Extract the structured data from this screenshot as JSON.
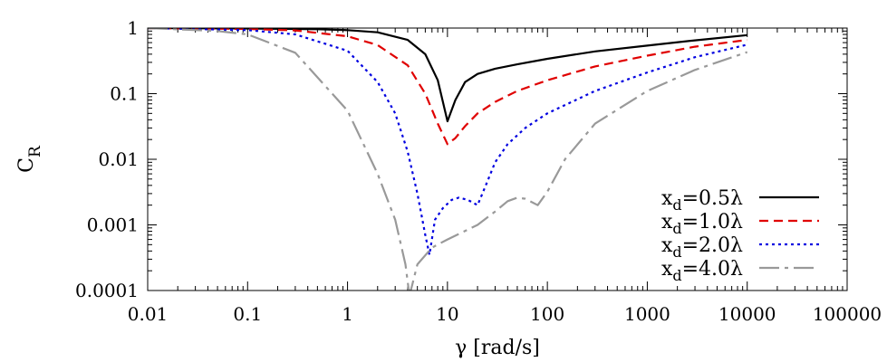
{
  "chart_data": {
    "type": "line",
    "title": "",
    "xlabel": "γ [rad/s]",
    "ylabel": "C",
    "ylabel_subscript": "R",
    "xscale": "log",
    "yscale": "log",
    "xlim": [
      0.01,
      100000
    ],
    "ylim": [
      0.0001,
      1
    ],
    "grid": false,
    "legend_position": "bottom-right",
    "x_ticks": [
      0.01,
      0.1,
      1,
      10,
      100,
      1000,
      10000,
      100000
    ],
    "x_tick_labels": [
      "0.01",
      "0.1",
      "1",
      "10",
      "100",
      "1000",
      "10000",
      "100000"
    ],
    "y_ticks": [
      0.0001,
      0.001,
      0.01,
      0.1,
      1
    ],
    "y_tick_labels": [
      "0.0001",
      "0.001",
      "0.01",
      "0.1",
      "1"
    ],
    "series": [
      {
        "name": "x_d=0.5λ",
        "label_main": "x",
        "label_sub": "d",
        "label_rest": "=0.5λ",
        "color": "#000000",
        "dash": "solid",
        "x": [
          0.01,
          0.1,
          0.5,
          1,
          2,
          4,
          6,
          8,
          10,
          12,
          15,
          20,
          30,
          50,
          100,
          300,
          1000,
          3000,
          10000
        ],
        "y": [
          1.0,
          0.985,
          0.96,
          0.93,
          0.86,
          0.66,
          0.4,
          0.16,
          0.038,
          0.08,
          0.15,
          0.2,
          0.24,
          0.28,
          0.34,
          0.44,
          0.54,
          0.65,
          0.78
        ]
      },
      {
        "name": "x_d=1.0λ",
        "label_main": "x",
        "label_sub": "d",
        "label_rest": "=1.0λ",
        "color": "#e00000",
        "dash": "dashed",
        "x": [
          0.01,
          0.1,
          0.3,
          1,
          2,
          4,
          6,
          8,
          10,
          12,
          15,
          20,
          30,
          50,
          100,
          300,
          1000,
          3000,
          10000
        ],
        "y": [
          1.0,
          0.97,
          0.92,
          0.75,
          0.55,
          0.27,
          0.1,
          0.035,
          0.017,
          0.021,
          0.032,
          0.05,
          0.075,
          0.11,
          0.16,
          0.26,
          0.38,
          0.52,
          0.66
        ]
      },
      {
        "name": "x_d=2.0λ",
        "label_main": "x",
        "label_sub": "d",
        "label_rest": "=2.0λ",
        "color": "#0000e0",
        "dash": "dotted",
        "x": [
          0.01,
          0.1,
          0.3,
          1,
          2,
          3,
          4,
          5,
          6,
          6.6,
          7.5,
          9,
          11,
          13,
          16,
          20,
          25,
          30,
          40,
          60,
          100,
          300,
          1000,
          3000,
          10000
        ],
        "y": [
          1.0,
          0.93,
          0.8,
          0.45,
          0.15,
          0.05,
          0.013,
          0.003,
          0.0007,
          0.00035,
          0.0012,
          0.0018,
          0.0024,
          0.0026,
          0.0024,
          0.002,
          0.0045,
          0.009,
          0.017,
          0.03,
          0.05,
          0.11,
          0.21,
          0.36,
          0.56
        ]
      },
      {
        "name": "x_d=4.0λ",
        "label_main": "x",
        "label_sub": "d",
        "label_rest": "=4.0λ",
        "color": "#999999",
        "dash": "dashdot",
        "x": [
          0.01,
          0.05,
          0.1,
          0.3,
          1,
          2,
          3,
          3.8,
          4.1,
          4.3,
          5,
          7,
          10,
          20,
          30,
          40,
          50,
          60,
          80,
          100,
          150,
          300,
          1000,
          3000,
          10000
        ],
        "y": [
          1.0,
          0.9,
          0.8,
          0.42,
          0.055,
          0.006,
          0.0012,
          0.00025,
          0.0001,
          0.0001,
          0.00025,
          0.00045,
          0.0006,
          0.001,
          0.0016,
          0.0023,
          0.0026,
          0.0025,
          0.002,
          0.0032,
          0.01,
          0.035,
          0.11,
          0.23,
          0.43
        ]
      }
    ]
  }
}
